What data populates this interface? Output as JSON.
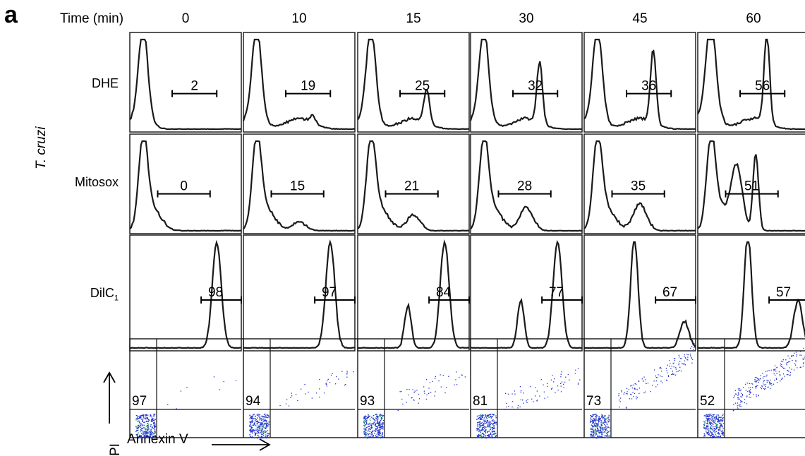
{
  "panel_letter": "a",
  "species_label": "T. cruzi",
  "time_header": "Time (min)",
  "times": [
    "0",
    "10",
    "15",
    "30",
    "45",
    "60"
  ],
  "rows": {
    "dhe": {
      "label": "DHE",
      "values": [
        "2",
        "19",
        "25",
        "32",
        "36",
        "56"
      ]
    },
    "mitosox": {
      "label": "Mitosox",
      "values": [
        "0",
        "15",
        "21",
        "28",
        "35",
        "51"
      ]
    },
    "dilc1": {
      "label": "DilC",
      "subscript": "1",
      "values": [
        "98",
        "97",
        "84",
        "77",
        "67",
        "57"
      ]
    },
    "annexin_pi": {
      "values": [
        "97",
        "94",
        "93",
        "81",
        "73",
        "52"
      ]
    }
  },
  "axis_labels": {
    "pi": "PI",
    "annexin": "Annexin V"
  },
  "colors": {
    "line": "#1a1a1a",
    "dot_blue": "#2233cc",
    "dot_green": "#22aa66",
    "frame": "#111111"
  }
}
